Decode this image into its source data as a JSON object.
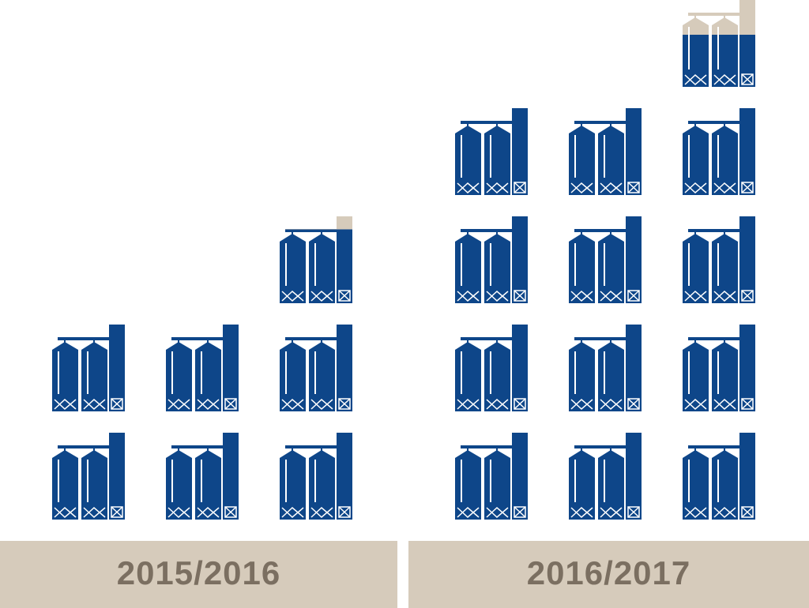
{
  "chart_data": {
    "type": "pictograph",
    "categories": [
      "2015/2016",
      "2016/2017"
    ],
    "values": [
      6.85,
      12.6
    ],
    "color": "#0e4689",
    "empty_color": "#d6cbbb"
  }
}
